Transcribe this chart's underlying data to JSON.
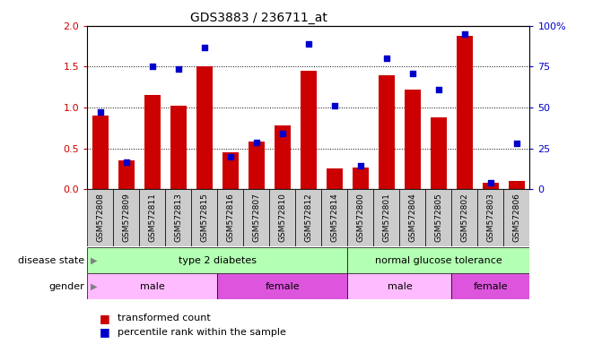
{
  "title": "GDS3883 / 236711_at",
  "samples": [
    "GSM572808",
    "GSM572809",
    "GSM572811",
    "GSM572813",
    "GSM572815",
    "GSM572816",
    "GSM572807",
    "GSM572810",
    "GSM572812",
    "GSM572814",
    "GSM572800",
    "GSM572801",
    "GSM572804",
    "GSM572805",
    "GSM572802",
    "GSM572803",
    "GSM572806"
  ],
  "transformed_count": [
    0.9,
    0.35,
    1.15,
    1.02,
    1.5,
    0.45,
    0.58,
    0.78,
    1.45,
    0.25,
    0.27,
    1.4,
    1.22,
    0.88,
    1.88,
    0.08,
    0.1
  ],
  "percentile_rank": [
    0.95,
    0.33,
    1.5,
    1.47,
    1.73,
    0.4,
    0.57,
    0.68,
    1.78,
    1.02,
    0.29,
    1.6,
    1.42,
    1.22,
    1.9,
    0.08,
    0.56
  ],
  "bar_color": "#cc0000",
  "dot_color": "#0000cc",
  "ylim_left": [
    0,
    2
  ],
  "yticks_left": [
    0,
    0.5,
    1.0,
    1.5,
    2.0
  ],
  "yticks_right": [
    0,
    25,
    50,
    75,
    100
  ],
  "disease_state_color": "#b3ffb3",
  "gender_male_color": "#ffbbff",
  "gender_female_color": "#dd55dd",
  "xtick_bg_color": "#cccccc",
  "bg_color": "#ffffff",
  "tick_label_color_left": "#cc0000",
  "tick_label_color_right": "#0000cc"
}
